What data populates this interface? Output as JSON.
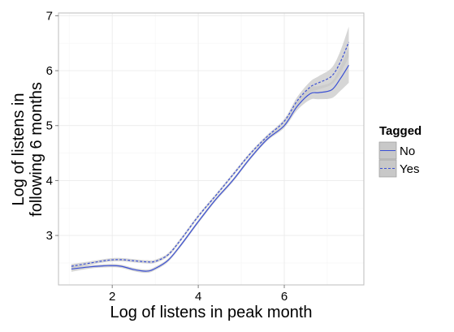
{
  "chart_data": {
    "type": "line",
    "xlabel": "Log of listens in peak month",
    "ylabel_lines": [
      "Log of listens in",
      "following 6 months"
    ],
    "xlim": [
      0.75,
      7.85
    ],
    "ylim": [
      2.1,
      7.05
    ],
    "x_ticks": [
      2,
      4,
      6
    ],
    "y_ticks": [
      3,
      4,
      5,
      6,
      7
    ],
    "grid": true,
    "legend_position": "right",
    "legend_title": "Tagged",
    "colors": {
      "line": "#3b50d4",
      "band": "#c8c8c8",
      "panel_border": "#bdbdbd"
    },
    "series": [
      {
        "name": "No",
        "line_style": "solid",
        "x": [
          1.05,
          1.5,
          1.9,
          2.2,
          2.5,
          2.8,
          3.0,
          3.3,
          3.6,
          4.0,
          4.4,
          4.8,
          5.2,
          5.6,
          6.0,
          6.3,
          6.6,
          6.8,
          7.1,
          7.3,
          7.5
        ],
        "y": [
          2.39,
          2.43,
          2.45,
          2.44,
          2.38,
          2.35,
          2.4,
          2.55,
          2.83,
          3.25,
          3.65,
          4.0,
          4.4,
          4.75,
          5.0,
          5.35,
          5.58,
          5.6,
          5.65,
          5.85,
          6.1
        ],
        "lower": [
          2.34,
          2.4,
          2.42,
          2.41,
          2.35,
          2.32,
          2.37,
          2.52,
          2.8,
          3.22,
          3.62,
          3.97,
          4.37,
          4.72,
          4.96,
          5.28,
          5.47,
          5.48,
          5.5,
          5.63,
          5.78
        ],
        "upper": [
          2.44,
          2.46,
          2.48,
          2.47,
          2.41,
          2.38,
          2.43,
          2.58,
          2.86,
          3.28,
          3.68,
          4.03,
          4.43,
          4.78,
          5.04,
          5.42,
          5.69,
          5.72,
          5.8,
          6.07,
          6.42
        ]
      },
      {
        "name": "Yes",
        "line_style": "dashed",
        "x": [
          1.05,
          1.5,
          1.9,
          2.2,
          2.5,
          2.8,
          3.0,
          3.3,
          3.6,
          4.0,
          4.4,
          4.8,
          5.2,
          5.6,
          6.0,
          6.3,
          6.6,
          6.8,
          7.1,
          7.3,
          7.5
        ],
        "y": [
          2.44,
          2.5,
          2.55,
          2.56,
          2.54,
          2.52,
          2.53,
          2.65,
          2.93,
          3.35,
          3.72,
          4.1,
          4.48,
          4.8,
          5.08,
          5.45,
          5.7,
          5.78,
          5.9,
          6.15,
          6.52
        ],
        "lower": [
          2.4,
          2.47,
          2.52,
          2.53,
          2.51,
          2.49,
          2.5,
          2.62,
          2.9,
          3.32,
          3.69,
          4.07,
          4.45,
          4.77,
          5.04,
          5.38,
          5.6,
          5.66,
          5.75,
          5.95,
          6.25
        ],
        "upper": [
          2.48,
          2.53,
          2.58,
          2.59,
          2.57,
          2.55,
          2.56,
          2.68,
          2.96,
          3.38,
          3.75,
          4.13,
          4.51,
          4.83,
          5.12,
          5.52,
          5.8,
          5.9,
          6.05,
          6.35,
          6.8
        ]
      }
    ]
  }
}
